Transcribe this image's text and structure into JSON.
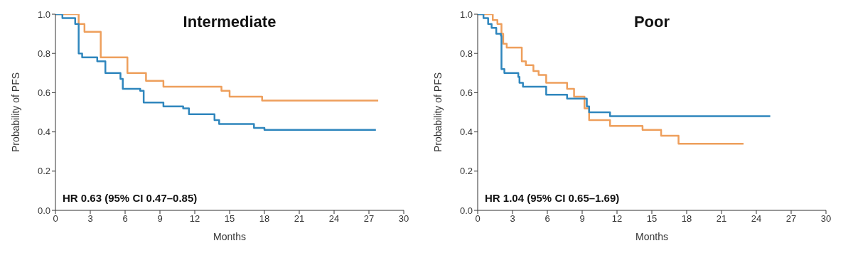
{
  "chart_data": [
    {
      "type": "step",
      "title": "Intermediate",
      "xlabel": "Months",
      "ylabel": "Probability of PFS",
      "annotations": [
        "HR 0.63 (95% CI 0.47–0.85)"
      ],
      "xlim": [
        0,
        30
      ],
      "xticks": [
        0,
        3,
        6,
        9,
        12,
        15,
        18,
        21,
        24,
        27,
        30
      ],
      "ylim": [
        0,
        1
      ],
      "yticks": [
        {
          "value": 0,
          "label": "0.0"
        },
        {
          "value": 0.2,
          "label": "0.2"
        },
        {
          "value": 0.4,
          "label": "0.4"
        },
        {
          "value": 0.6,
          "label": "0.6"
        },
        {
          "value": 0.8,
          "label": "0.8"
        },
        {
          "value": 1,
          "label": "1.0"
        }
      ],
      "grid": false,
      "legend": false,
      "series": [
        {
          "color": "#ee9f5c",
          "x": [
            0,
            2,
            2.5,
            3.9,
            6.2,
            7.8,
            9.3,
            14.3,
            15,
            17.8,
            27.8
          ],
          "values": [
            1,
            0.95,
            0.91,
            0.78,
            0.7,
            0.66,
            0.63,
            0.61,
            0.58,
            0.56,
            0.56
          ]
        },
        {
          "color": "#2f86bd",
          "x": [
            0,
            0.6,
            1.7,
            2,
            2.3,
            3.6,
            4.3,
            5.6,
            5.8,
            7.3,
            7.6,
            9.3,
            11,
            11.5,
            13.7,
            14.1,
            17.1,
            18,
            27.6
          ],
          "values": [
            1,
            0.98,
            0.95,
            0.8,
            0.78,
            0.76,
            0.7,
            0.67,
            0.62,
            0.61,
            0.55,
            0.53,
            0.52,
            0.49,
            0.46,
            0.44,
            0.42,
            0.41,
            0.41
          ]
        }
      ]
    },
    {
      "type": "step",
      "title": "Poor",
      "xlabel": "Months",
      "ylabel": "Probability of PFS",
      "annotations": [
        "HR 1.04 (95% CI 0.65–1.69)"
      ],
      "xlim": [
        0,
        30
      ],
      "xticks": [
        0,
        3,
        6,
        9,
        12,
        15,
        18,
        21,
        24,
        27,
        30
      ],
      "ylim": [
        0,
        1
      ],
      "yticks": [
        {
          "value": 0,
          "label": "0.0"
        },
        {
          "value": 0.2,
          "label": "0.2"
        },
        {
          "value": 0.4,
          "label": "0.4"
        },
        {
          "value": 0.6,
          "label": "0.6"
        },
        {
          "value": 0.8,
          "label": "0.8"
        },
        {
          "value": 1,
          "label": "1.0"
        }
      ],
      "grid": false,
      "legend": false,
      "series": [
        {
          "color": "#ee9f5c",
          "x": [
            0,
            1.3,
            1.7,
            2.05,
            2.2,
            2.5,
            3.8,
            4.15,
            4.8,
            5.25,
            5.9,
            7.7,
            8.3,
            9.2,
            9.6,
            11.4,
            14.2,
            15.8,
            17.3,
            22.9
          ],
          "values": [
            1,
            0.97,
            0.95,
            0.9,
            0.85,
            0.83,
            0.76,
            0.74,
            0.71,
            0.69,
            0.65,
            0.62,
            0.58,
            0.52,
            0.46,
            0.43,
            0.41,
            0.38,
            0.34,
            0.34
          ]
        },
        {
          "color": "#2f86bd",
          "x": [
            0,
            0.5,
            0.9,
            1.2,
            1.6,
            2,
            2.05,
            2.3,
            3.5,
            3.6,
            3.9,
            5.9,
            7.7,
            9.4,
            9.6,
            11.4,
            25.2
          ],
          "values": [
            1,
            0.98,
            0.95,
            0.93,
            0.9,
            0.89,
            0.72,
            0.7,
            0.68,
            0.65,
            0.63,
            0.59,
            0.57,
            0.53,
            0.5,
            0.48,
            0.48
          ]
        }
      ]
    }
  ]
}
